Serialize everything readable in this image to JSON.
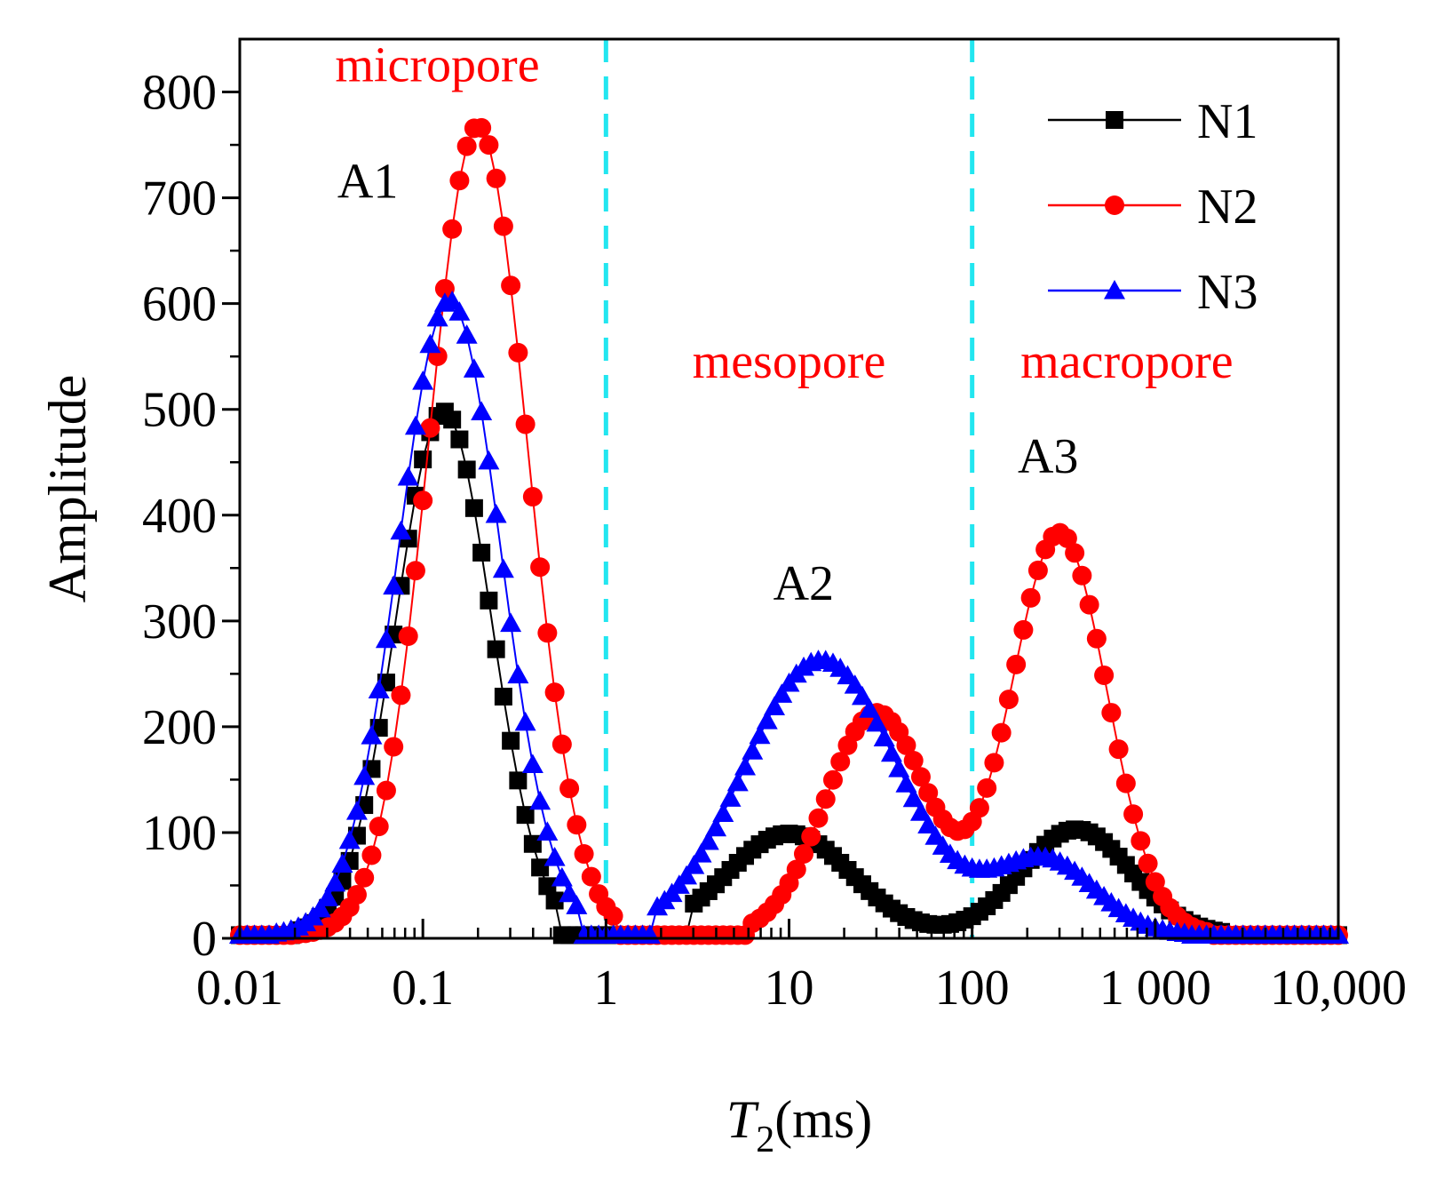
{
  "chart_data": {
    "type": "scatter",
    "xscale": "log",
    "xlim": [
      0.01,
      10000
    ],
    "ylim": [
      0,
      850
    ],
    "xlabel": {
      "italic": "T",
      "subscript": "2",
      "rest": "(ms)"
    },
    "ylabel": "Amplitude",
    "xticks": [
      {
        "value": 0.01,
        "label": "0.01"
      },
      {
        "value": 0.1,
        "label": "0.1"
      },
      {
        "value": 1,
        "label": "1"
      },
      {
        "value": 10,
        "label": "10"
      },
      {
        "value": 100,
        "label": "100"
      },
      {
        "value": 1000,
        "label": "1 000"
      },
      {
        "value": 10000,
        "label": "10,000"
      }
    ],
    "yticks": [
      {
        "value": 0,
        "label": "0"
      },
      {
        "value": 100,
        "label": "100"
      },
      {
        "value": 200,
        "label": "200"
      },
      {
        "value": 300,
        "label": "300"
      },
      {
        "value": 400,
        "label": "400"
      },
      {
        "value": 500,
        "label": "500"
      },
      {
        "value": 600,
        "label": "600"
      },
      {
        "value": 700,
        "label": "700"
      },
      {
        "value": 800,
        "label": "800"
      }
    ],
    "vlines": [
      {
        "x": 1,
        "color": "#22e6f0",
        "style": "dashed"
      },
      {
        "x": 100,
        "color": "#22e6f0",
        "style": "dashed"
      }
    ],
    "region_labels": [
      {
        "text": "micropore",
        "x": 0.12,
        "y": 810,
        "color": "#ff0000"
      },
      {
        "text": "mesopore",
        "x": 10,
        "y": 530,
        "color": "#ff0000"
      },
      {
        "text": "macropore",
        "x": 700,
        "y": 530,
        "color": "#ff0000"
      }
    ],
    "peak_labels": [
      {
        "text": "A1",
        "x": 0.05,
        "y": 700
      },
      {
        "text": "A2",
        "x": 12,
        "y": 320
      },
      {
        "text": "A3",
        "x": 260,
        "y": 440
      }
    ],
    "legend": "top-right",
    "series": [
      {
        "name": "N1",
        "color": "#000000",
        "marker": "square",
        "peaks": [
          {
            "center": 0.13,
            "amp": 495,
            "width": 0.26,
            "min": 0.02,
            "max": 0.55
          },
          {
            "center": 10,
            "amp": 96,
            "width": 0.34,
            "min": 3,
            "max": 60
          },
          {
            "center": 370,
            "amp": 100,
            "width": 0.3,
            "min": 60,
            "max": 2500
          }
        ],
        "overlap_min": 30,
        "baseline_ranges": [
          [
            0.01,
            0.02
          ],
          [
            0.55,
            3
          ],
          [
            2500,
            10000
          ]
        ]
      },
      {
        "name": "N2",
        "color": "#ff0000",
        "marker": "circle",
        "peaks": [
          {
            "center": 0.2,
            "amp": 765,
            "width": 0.27,
            "min": 0.02,
            "max": 1.15
          },
          {
            "center": 30,
            "amp": 210,
            "width": 0.28,
            "min": 6,
            "max": 90
          },
          {
            "center": 300,
            "amp": 380,
            "width": 0.26,
            "min": 60,
            "max": 2000
          }
        ],
        "overlap_min": 190,
        "baseline_ranges": [
          [
            0.01,
            0.02
          ],
          [
            1.15,
            6
          ],
          [
            2000,
            10000
          ]
        ]
      },
      {
        "name": "N3",
        "color": "#0000ff",
        "marker": "triangle",
        "peaks": [
          {
            "center": 0.14,
            "amp": 600,
            "width": 0.28,
            "min": 0.015,
            "max": 0.7
          },
          {
            "center": 15,
            "amp": 260,
            "width": 0.42,
            "min": 1.8,
            "max": 160
          },
          {
            "center": 250,
            "amp": 70,
            "width": 0.28,
            "min": 120,
            "max": 1500
          }
        ],
        "overlap_min": 90,
        "baseline_ranges": [
          [
            0.01,
            0.015
          ],
          [
            0.7,
            1.8
          ],
          [
            1500,
            10000
          ]
        ]
      }
    ]
  }
}
